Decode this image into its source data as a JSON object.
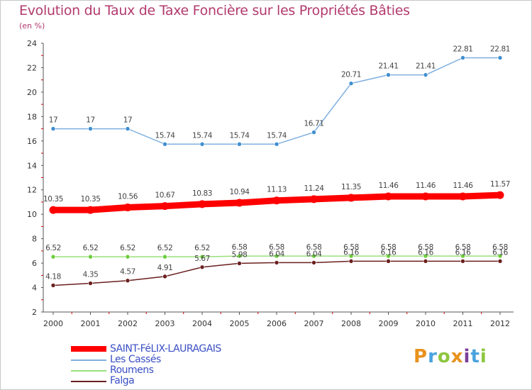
{
  "header": {
    "title": "Evolution du Taux de Taxe Foncière sur les Propriétés Bâties",
    "unit": "(en %)"
  },
  "brand": {
    "text": "Proxiti",
    "colors": [
      "#e8921e",
      "#4aa3df",
      "#8dc63f",
      "#e8921e",
      "#7b3f99",
      "#4aa3df",
      "#8dc63f"
    ]
  },
  "chart_data": {
    "type": "line",
    "title": "Evolution du Taux de Taxe Foncière sur les Propriétés Bâties",
    "ylabel": "(en %)",
    "xlabel": "",
    "ylim": [
      2,
      24
    ],
    "yticks": [
      2,
      4,
      6,
      8,
      10,
      12,
      14,
      16,
      18,
      20,
      22,
      24
    ],
    "categories": [
      "2000",
      "2001",
      "2002",
      "2003",
      "2004",
      "2005",
      "2006",
      "2007",
      "2008",
      "2009",
      "2010",
      "2011",
      "2012"
    ],
    "grid": false,
    "legend_position": "bottom-left",
    "series": [
      {
        "name": "SAINT-FéLIX-LAURAGAIS",
        "color": "#ff0000",
        "emphasis": true,
        "values": [
          10.35,
          10.35,
          10.56,
          10.67,
          10.83,
          10.94,
          11.13,
          11.24,
          11.35,
          11.46,
          11.46,
          11.46,
          11.57
        ],
        "labels": [
          "10.35",
          "10.35",
          "10.56",
          "10.67",
          "10.83",
          "10.94",
          "11.13",
          "11.24",
          "11.35",
          "11.46",
          "11.46",
          "11.46",
          "11.57"
        ]
      },
      {
        "name": "Les Cassés",
        "color": "#7fb0e0",
        "marker": "#3f8fd1",
        "values": [
          17,
          17,
          17,
          15.74,
          15.74,
          15.74,
          15.74,
          16.71,
          20.71,
          21.41,
          21.41,
          22.81,
          22.81
        ],
        "labels": [
          "17",
          "17",
          "17",
          "15.74",
          "15.74",
          "15.74",
          "15.74",
          "16.71",
          "20.71",
          "21.41",
          "21.41",
          "22.81",
          "22.81"
        ]
      },
      {
        "name": "Roumens",
        "color": "#99e07a",
        "marker": "#6ccc3c",
        "values": [
          6.52,
          6.52,
          6.52,
          6.52,
          6.52,
          6.58,
          6.58,
          6.58,
          6.58,
          6.58,
          6.58,
          6.58,
          6.58
        ],
        "labels": [
          "6.52",
          "6.52",
          "6.52",
          "6.52",
          "6.52",
          "6.58",
          "6.58",
          "6.58",
          "6.58",
          "6.58",
          "6.58",
          "6.58",
          "6.58"
        ]
      },
      {
        "name": "Falga",
        "color": "#6b1f1f",
        "marker": "#6b1f1f",
        "values": [
          4.18,
          4.35,
          4.57,
          4.91,
          5.67,
          5.98,
          6.04,
          6.04,
          6.16,
          6.16,
          6.16,
          6.16,
          6.16
        ],
        "labels": [
          "4.18",
          "4.35",
          "4.57",
          "4.91",
          "5.67",
          "5.98",
          "6.04",
          "6.04",
          "6.16",
          "6.16",
          "6.16",
          "6.16",
          "6.16"
        ]
      }
    ]
  }
}
